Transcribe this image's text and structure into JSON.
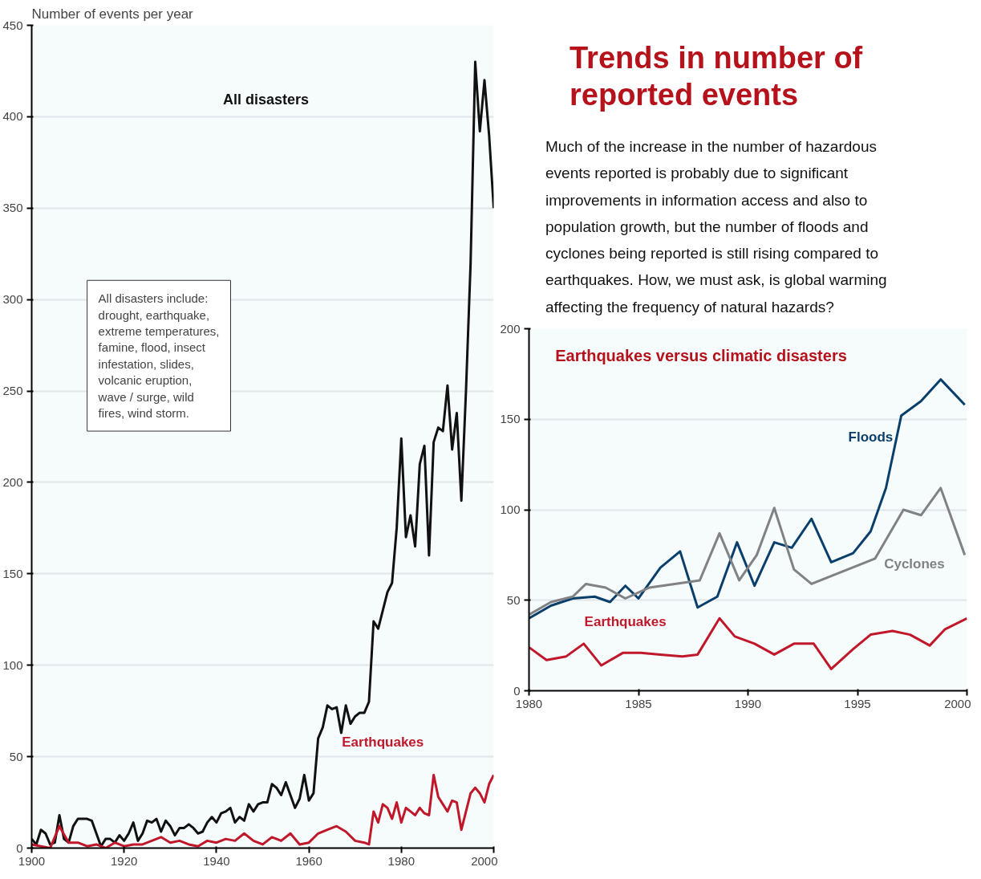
{
  "chart_data": [
    {
      "type": "line",
      "ylabel": "Number of events per year",
      "xlim": [
        1900,
        2000
      ],
      "ylim": [
        0,
        450
      ],
      "xticks": [
        1900,
        1920,
        1940,
        1960,
        1980,
        2000
      ],
      "yticks": [
        0,
        50,
        100,
        150,
        200,
        250,
        300,
        350,
        400,
        450
      ],
      "grid": "y",
      "annotations": [
        "All disasters include: drought, earthquake, extreme temperatures, famine, flood, insect infestation, slides, volcanic eruption, wave / surge, wild fires, wind storm."
      ],
      "series": [
        {
          "name": "All disasters",
          "color": "#111111",
          "x": [
            1900,
            1901,
            1902,
            1903,
            1904,
            1905,
            1906,
            1907,
            1908,
            1909,
            1910,
            1911,
            1912,
            1913,
            1914,
            1915,
            1916,
            1917,
            1918,
            1919,
            1920,
            1921,
            1922,
            1923,
            1924,
            1925,
            1926,
            1927,
            1928,
            1929,
            1930,
            1931,
            1932,
            1933,
            1934,
            1935,
            1936,
            1937,
            1938,
            1939,
            1940,
            1941,
            1942,
            1943,
            1944,
            1945,
            1946,
            1947,
            1948,
            1949,
            1950,
            1951,
            1952,
            1953,
            1954,
            1955,
            1956,
            1957,
            1958,
            1959,
            1960,
            1961,
            1962,
            1963,
            1964,
            1965,
            1966,
            1967,
            1968,
            1969,
            1970,
            1971,
            1972,
            1973,
            1974,
            1975,
            1976,
            1977,
            1978,
            1979,
            1980,
            1981,
            1982,
            1983,
            1984,
            1985,
            1986,
            1987,
            1988,
            1989,
            1990,
            1991,
            1992,
            1993,
            1994,
            1995,
            1996,
            1997,
            1998,
            1999,
            2000
          ],
          "values": [
            5,
            2,
            10,
            8,
            2,
            3,
            18,
            5,
            3,
            12,
            16,
            16,
            16,
            15,
            8,
            1,
            5,
            5,
            3,
            7,
            4,
            8,
            14,
            4,
            8,
            15,
            14,
            16,
            9,
            15,
            12,
            7,
            11,
            11,
            13,
            11,
            8,
            9,
            14,
            17,
            14,
            19,
            20,
            22,
            14,
            17,
            15,
            24,
            20,
            24,
            25,
            25,
            35,
            33,
            29,
            36,
            29,
            22,
            27,
            40,
            26,
            30,
            60,
            66,
            78,
            76,
            77,
            63,
            78,
            68,
            72,
            74,
            74,
            80,
            124,
            120,
            130,
            140,
            145,
            175,
            224,
            170,
            182,
            165,
            210,
            220,
            160,
            222,
            230,
            228,
            253,
            218,
            238,
            190,
            250,
            320,
            430,
            392,
            420,
            390,
            350
          ]
        },
        {
          "name": "Earthquakes",
          "color": "#c0182a",
          "x": [
            1900,
            1902,
            1904,
            1906,
            1908,
            1910,
            1912,
            1914,
            1916,
            1918,
            1920,
            1922,
            1924,
            1926,
            1928,
            1930,
            1932,
            1934,
            1936,
            1938,
            1940,
            1942,
            1944,
            1946,
            1948,
            1950,
            1952,
            1954,
            1956,
            1958,
            1960,
            1962,
            1964,
            1966,
            1968,
            1970,
            1972,
            1973,
            1974,
            1975,
            1976,
            1977,
            1978,
            1979,
            1980,
            1981,
            1982,
            1983,
            1984,
            1985,
            1986,
            1987,
            1988,
            1989,
            1990,
            1991,
            1992,
            1993,
            1994,
            1995,
            1996,
            1997,
            1998,
            1999,
            2000
          ],
          "values": [
            2,
            1,
            0,
            12,
            3,
            3,
            1,
            2,
            0,
            3,
            1,
            2,
            2,
            4,
            6,
            3,
            4,
            2,
            1,
            4,
            3,
            5,
            4,
            8,
            4,
            2,
            6,
            4,
            8,
            2,
            3,
            8,
            10,
            12,
            9,
            4,
            3,
            2,
            20,
            14,
            24,
            22,
            16,
            25,
            14,
            22,
            20,
            18,
            22,
            19,
            18,
            40,
            28,
            24,
            20,
            26,
            25,
            10,
            20,
            30,
            33,
            30,
            25,
            35,
            40
          ]
        }
      ]
    },
    {
      "type": "other",
      "title": "Trends in number of reported events",
      "annotations": [
        "Much of the increase in the number of hazardous events reported is probably due to significant improvements in information access and also to population growth, but the number of floods and cyclones being reported is still rising compared to earthquakes. How, we must ask, is global warming affecting the frequency of natural hazards?"
      ]
    },
    {
      "type": "line",
      "title": "Earthquakes versus climatic disasters",
      "xlim": [
        1980,
        2000
      ],
      "ylim": [
        0,
        200
      ],
      "xticks": [
        1980,
        1985,
        1990,
        1995,
        2000
      ],
      "yticks": [
        0,
        50,
        100,
        150,
        200
      ],
      "grid": "y",
      "series": [
        {
          "name": "Floods",
          "color": "#0b3f6b",
          "x": [
            1980,
            1981,
            1982,
            1983,
            1983.7,
            1984.4,
            1985,
            1986,
            1986.9,
            1987.7,
            1988.6,
            1989.5,
            1990.3,
            1991.2,
            1992,
            1992.9,
            1993.8,
            1994.8,
            1995.6,
            1996.3,
            1997,
            1997.9,
            1998.8,
            1999.9
          ],
          "values": [
            40,
            47,
            51,
            52,
            49,
            58,
            51,
            68,
            77,
            46,
            52,
            82,
            58,
            82,
            79,
            95,
            71,
            76,
            88,
            112,
            152,
            160,
            172,
            158
          ]
        },
        {
          "name": "Cyclones",
          "color": "#808285",
          "x": [
            1980,
            1981,
            1982,
            1982.6,
            1983.5,
            1984.4,
            1985.5,
            1987.8,
            1988.7,
            1989.6,
            1990.4,
            1991.2,
            1992.1,
            1992.9,
            1995.8,
            1997.1,
            1997.9,
            1998.8,
            1999.9
          ],
          "values": [
            42,
            49,
            52,
            59,
            57,
            51,
            57,
            61,
            87,
            61,
            75,
            101,
            67,
            59,
            73,
            100,
            97,
            112,
            75
          ]
        },
        {
          "name": "Earthquakes",
          "color": "#c0182a",
          "x": [
            1980,
            1980.8,
            1981.7,
            1982.5,
            1983.3,
            1984.3,
            1985.1,
            1986,
            1987,
            1987.7,
            1988.7,
            1989.4,
            1990.3,
            1991.2,
            1992.1,
            1993,
            1993.8,
            1994.8,
            1995.6,
            1996.6,
            1997.4,
            1998.3,
            1999,
            2000
          ],
          "values": [
            24,
            17,
            19,
            26,
            14,
            21,
            21,
            20,
            19,
            20,
            40,
            30,
            26,
            20,
            26,
            26,
            12,
            23,
            31,
            33,
            31,
            25,
            34,
            40
          ]
        }
      ]
    }
  ]
}
